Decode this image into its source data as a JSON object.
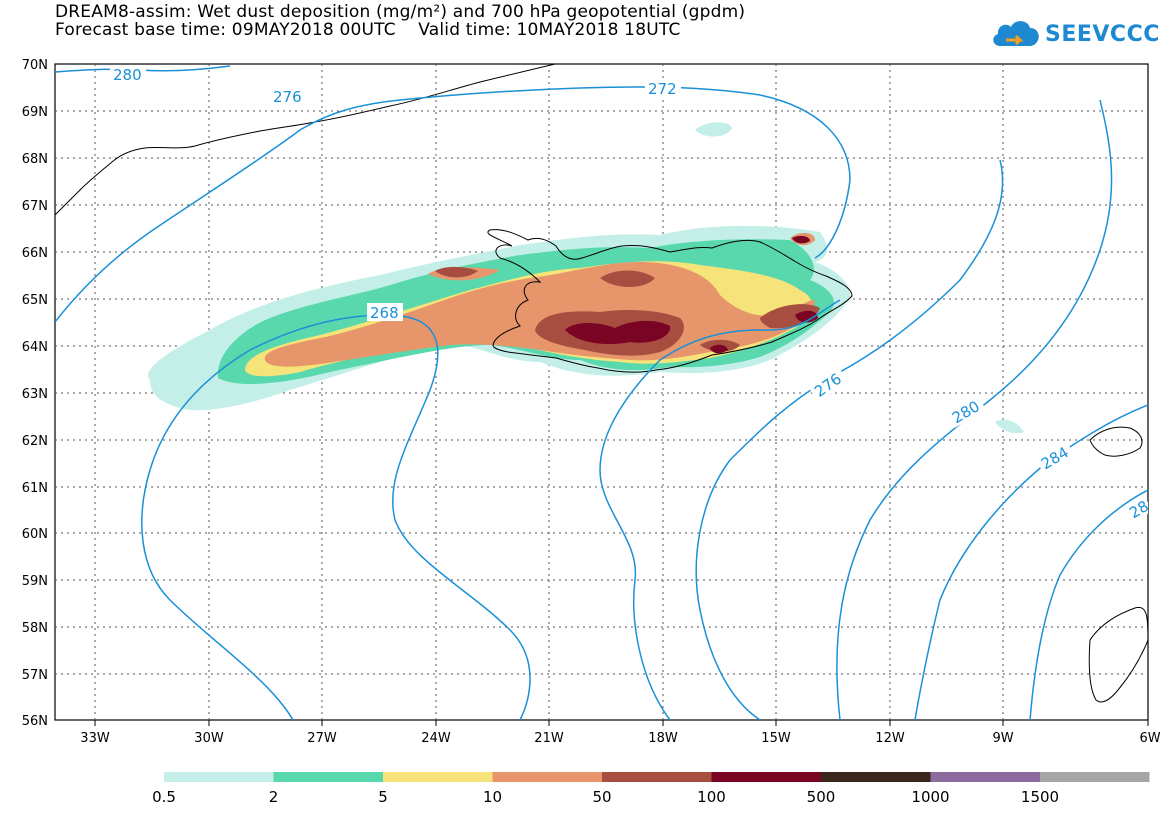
{
  "title": {
    "line1": "DREAM8-assim: Wet dust deposition (mg/m²) and 700 hPa geopotential (gpdm)",
    "line2": "Forecast base time: 09MAY2018 00UTC    Valid time: 10MAY2018 18UTC"
  },
  "logo": {
    "text": "SEEVCCC",
    "icon": "cloud-icon",
    "color": "#1e88d0"
  },
  "axes": {
    "lon_labels": [
      "33W",
      "30W",
      "27W",
      "24W",
      "21W",
      "18W",
      "15W",
      "12W",
      "9W",
      "6W"
    ],
    "lat_labels": [
      "70N",
      "69N",
      "68N",
      "67N",
      "66N",
      "65N",
      "64N",
      "63N",
      "62N",
      "61N",
      "60N",
      "59N",
      "58N",
      "57N",
      "56N"
    ]
  },
  "contours": {
    "color": "#1a90d8",
    "labels": [
      "280",
      "276",
      "272",
      "268",
      "276",
      "280",
      "284",
      "28"
    ]
  },
  "legend": {
    "colors": [
      "#c4efe9",
      "#5ad8ad",
      "#f6e47a",
      "#e7966b",
      "#a84e40",
      "#7a0424",
      "#3a261a",
      "#8b6a9e",
      "#a6a6a6"
    ],
    "labels": [
      "0.5",
      "2",
      "5",
      "10",
      "50",
      "100",
      "500",
      "1000",
      "1500"
    ]
  }
}
